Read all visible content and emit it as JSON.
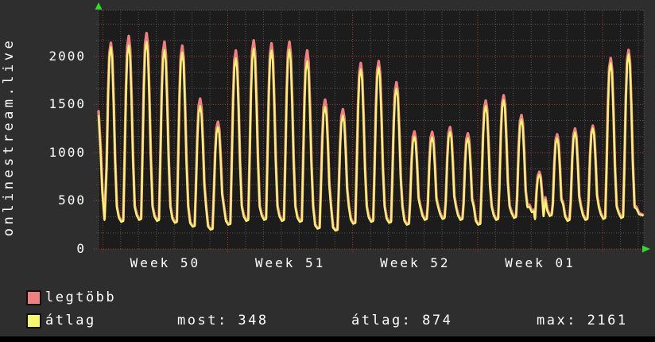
{
  "title": "onlinestream.live",
  "colors": {
    "background": "#2e2e2e",
    "plot_background": "#1c1c1c",
    "grid_minor": "#565656",
    "grid_major": "#a23c32",
    "border": "#555555",
    "axis_arrow": "#2ade2a",
    "text": "#ffffff",
    "legtobb": "#f08080",
    "atlag": "#f7f76e"
  },
  "legend": {
    "items": [
      {
        "name": "legtobb",
        "label": "legtöbb",
        "color": "#f08080"
      },
      {
        "name": "atlag",
        "label": "átlag",
        "color": "#f7f76e"
      }
    ]
  },
  "stats": {
    "items": [
      {
        "name": "most",
        "text": "most: 348",
        "label": "most",
        "value": 348
      },
      {
        "name": "atlag",
        "text": "átlag: 874",
        "label": "átlag",
        "value": 874
      },
      {
        "name": "max",
        "text": "max: 2161",
        "label": "max",
        "value": 2161
      }
    ]
  },
  "chart_data": {
    "type": "line",
    "title": "onlinestream.live",
    "ylabel": "",
    "xlabel": "",
    "ylim": [
      0,
      2475
    ],
    "y_ticks": [
      0,
      500,
      1000,
      1500,
      2000
    ],
    "y_minor_step": 166.7,
    "x_tick_labels": [
      "Week 50",
      "Week 51",
      "Week 52",
      "Week 01"
    ],
    "x_unit": "day",
    "days_shown": 30,
    "grid": "minor gray daily / major red weekly, dotted",
    "legend_position": "bottom-left",
    "series": [
      {
        "name": "legtöbb",
        "color": "#f08080",
        "daily_peaks": [
          2140,
          2210,
          2240,
          2150,
          2110,
          1560,
          1320,
          2060,
          2165,
          2135,
          2150,
          2060,
          1550,
          1450,
          1930,
          1950,
          1730,
          1220,
          1215,
          1265,
          1200,
          1540,
          1595,
          1390,
          800,
          1190,
          1250,
          1280,
          1980,
          2065
        ]
      },
      {
        "name": "átlag",
        "color": "#f7f76e",
        "daily_peaks": [
          2095,
          2115,
          2150,
          2065,
          2040,
          1485,
          1265,
          1980,
          2080,
          2060,
          2070,
          1950,
          1475,
          1385,
          1865,
          1885,
          1665,
          1165,
          1160,
          1215,
          1150,
          1485,
          1545,
          1345,
          770,
          1150,
          1210,
          1250,
          1930,
          2020
        ]
      }
    ],
    "daily_valleys": [
      300,
      280,
      300,
      290,
      270,
      230,
      200,
      250,
      290,
      300,
      290,
      280,
      210,
      190,
      260,
      280,
      270,
      250,
      300,
      310,
      300,
      250,
      300,
      320,
      380,
      340,
      290,
      300,
      310,
      320
    ],
    "start_value": 1380,
    "current_value": 348,
    "stats": {
      "most": 348,
      "atlag": 874,
      "max": 2161
    }
  }
}
